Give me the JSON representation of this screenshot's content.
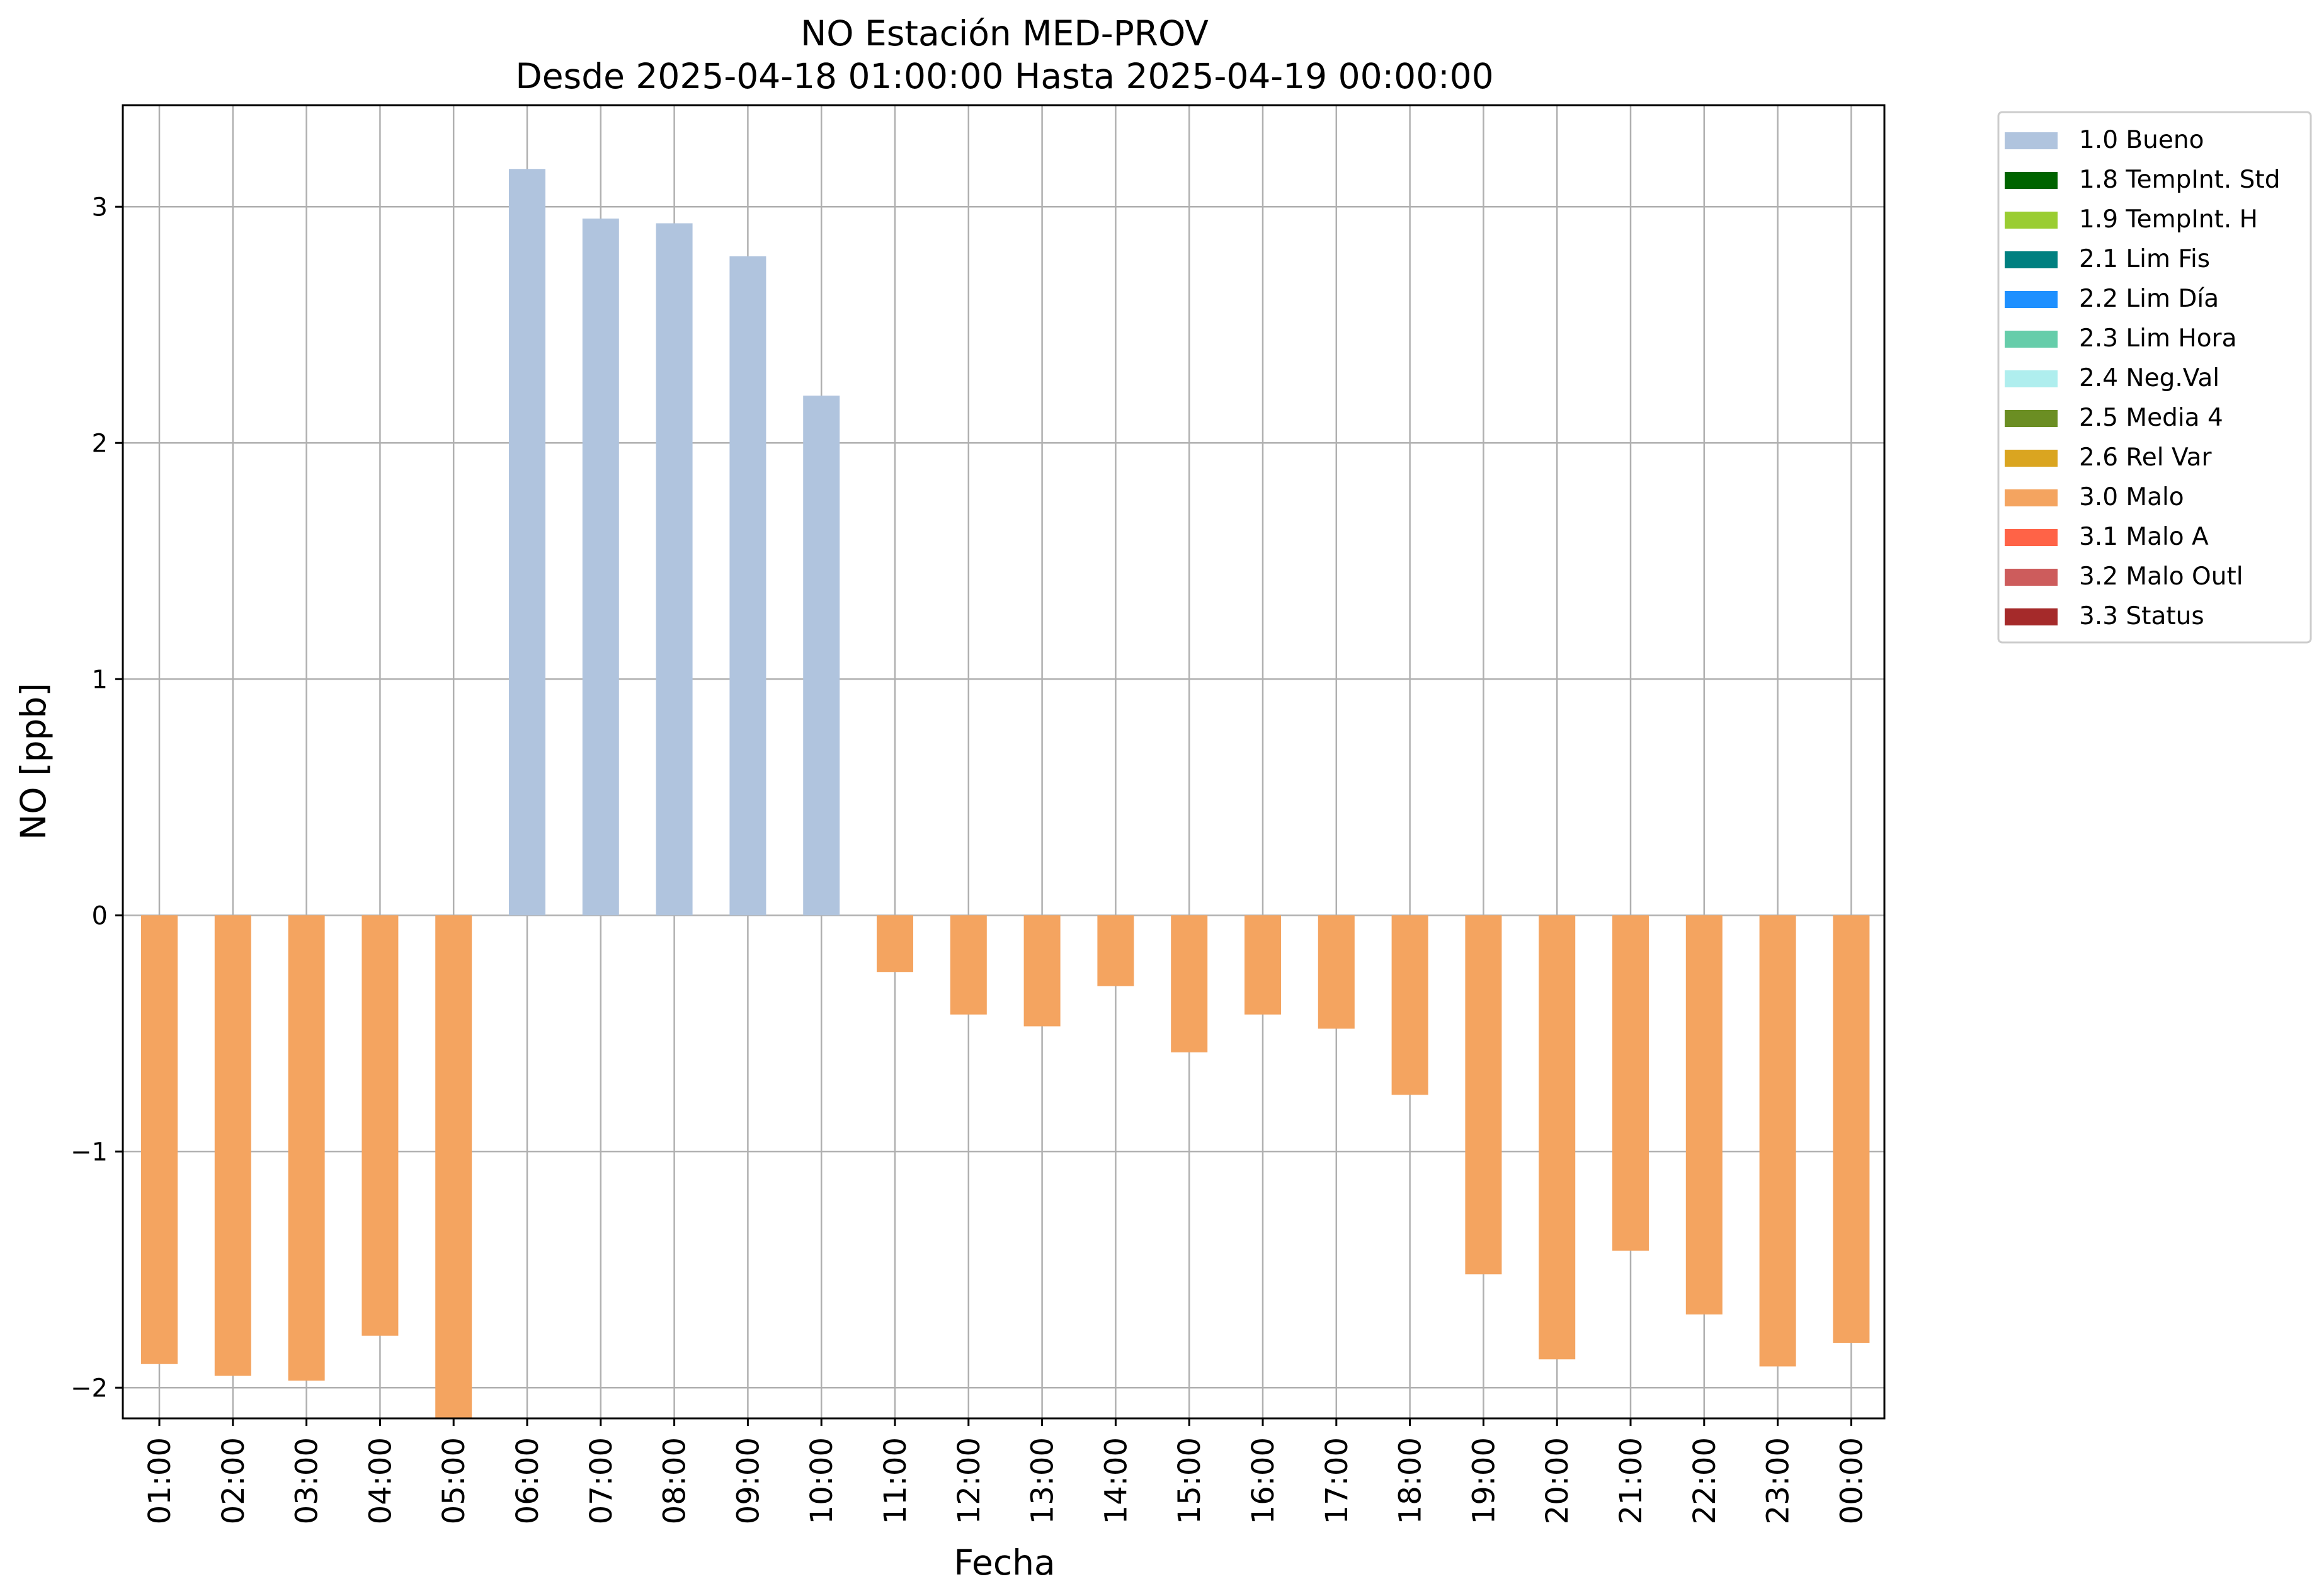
{
  "chart_data": {
    "type": "bar",
    "title": "NO Estación MED-PROV",
    "subtitle": "Desde 2025-04-18 01:00:00 Hasta 2025-04-19 00:00:00",
    "xlabel": "Fecha",
    "ylabel": "NO [ppb]",
    "ylim": [
      -2.13,
      3.43
    ],
    "yticks": [
      -2,
      -1,
      0,
      1,
      2,
      3
    ],
    "ytick_labels": [
      "−2",
      "−1",
      "0",
      "1",
      "2",
      "3"
    ],
    "grid": true,
    "legend_position": "outside-top-right",
    "categories": [
      "01:00",
      "02:00",
      "03:00",
      "04:00",
      "05:00",
      "06:00",
      "07:00",
      "08:00",
      "09:00",
      "10:00",
      "11:00",
      "12:00",
      "13:00",
      "14:00",
      "15:00",
      "16:00",
      "17:00",
      "18:00",
      "19:00",
      "20:00",
      "21:00",
      "22:00",
      "23:00",
      "00:00"
    ],
    "values": [
      -1.9,
      -1.95,
      -1.97,
      -1.78,
      -2.13,
      3.16,
      2.95,
      2.93,
      2.79,
      2.2,
      -0.24,
      -0.42,
      -0.47,
      -0.3,
      -0.58,
      -0.42,
      -0.48,
      -0.76,
      -1.52,
      -1.88,
      -1.42,
      -1.69,
      -1.91,
      -1.81
    ],
    "flags": [
      "3.0 Malo",
      "3.0 Malo",
      "3.0 Malo",
      "3.0 Malo",
      "3.0 Malo",
      "1.0 Bueno",
      "1.0 Bueno",
      "1.0 Bueno",
      "1.0 Bueno",
      "1.0 Bueno",
      "3.0 Malo",
      "3.0 Malo",
      "3.0 Malo",
      "3.0 Malo",
      "3.0 Malo",
      "3.0 Malo",
      "3.0 Malo",
      "3.0 Malo",
      "3.0 Malo",
      "3.0 Malo",
      "3.0 Malo",
      "3.0 Malo",
      "3.0 Malo",
      "3.0 Malo"
    ],
    "legend": [
      {
        "label": "1.0 Bueno",
        "color": "#b0c4de"
      },
      {
        "label": "1.8 TempInt. Std",
        "color": "#006400"
      },
      {
        "label": "1.9 TempInt. H",
        "color": "#9acd32"
      },
      {
        "label": "2.1 Lim Fis",
        "color": "#008080"
      },
      {
        "label": "2.2 Lim Día",
        "color": "#1e90ff"
      },
      {
        "label": "2.3 Lim Hora",
        "color": "#66cdaa"
      },
      {
        "label": "2.4 Neg.Val",
        "color": "#afeeee"
      },
      {
        "label": "2.5 Media 4",
        "color": "#6b8e23"
      },
      {
        "label": "2.6 Rel Var",
        "color": "#daa520"
      },
      {
        "label": "3.0 Malo",
        "color": "#f4a460"
      },
      {
        "label": "3.1 Malo A",
        "color": "#ff6347"
      },
      {
        "label": "3.2 Malo Outl",
        "color": "#cd5c5c"
      },
      {
        "label": "3.3 Status",
        "color": "#a52a2a"
      }
    ]
  }
}
